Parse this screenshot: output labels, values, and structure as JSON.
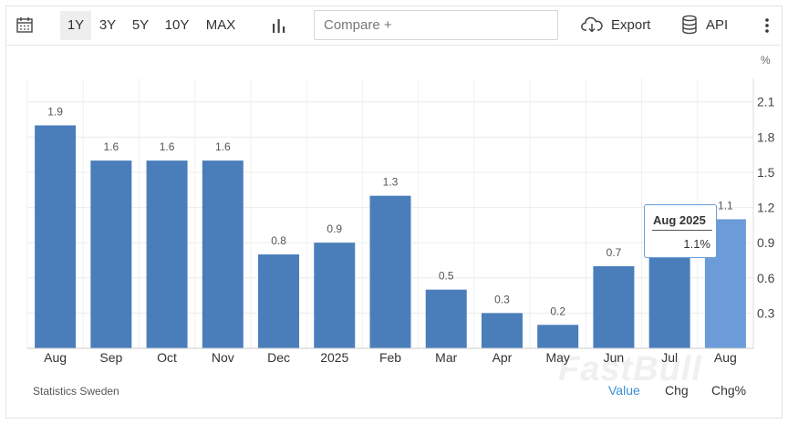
{
  "toolbar": {
    "ranges": [
      "1Y",
      "3Y",
      "5Y",
      "10Y",
      "MAX"
    ],
    "active_range": "1Y",
    "compare_placeholder": "Compare +",
    "export_label": "Export",
    "api_label": "API"
  },
  "chart_data": {
    "type": "bar",
    "categories": [
      "Aug",
      "Sep",
      "Oct",
      "Nov",
      "Dec",
      "2025",
      "Feb",
      "Mar",
      "Apr",
      "May",
      "Jun",
      "Jul",
      "Aug"
    ],
    "values": [
      1.9,
      1.6,
      1.6,
      1.6,
      0.8,
      0.9,
      1.3,
      0.5,
      0.3,
      0.2,
      0.7,
      0.8,
      1.1
    ],
    "data_labels": [
      "1.9",
      "1.6",
      "1.6",
      "1.6",
      "0.8",
      "0.9",
      "1.3",
      "0.5",
      "0.3",
      "0.2",
      "0.7",
      "0.8",
      "1.1"
    ],
    "yticks": [
      "0.3",
      "0.6",
      "0.9",
      "1.2",
      "1.5",
      "1.8",
      "2.1"
    ],
    "ylim": [
      0,
      2.3
    ],
    "unit": "%",
    "highlight_index": 12,
    "bar_color": "#4a7ebb",
    "highlight_color": "#6b9bd8",
    "grid": true
  },
  "tooltip": {
    "title": "Aug 2025",
    "value": "1.1%"
  },
  "footer": {
    "source": "Statistics Sweden",
    "value_label": "Value",
    "chg_label": "Chg",
    "chgpct_label": "Chg%",
    "watermark": "FastBull"
  }
}
